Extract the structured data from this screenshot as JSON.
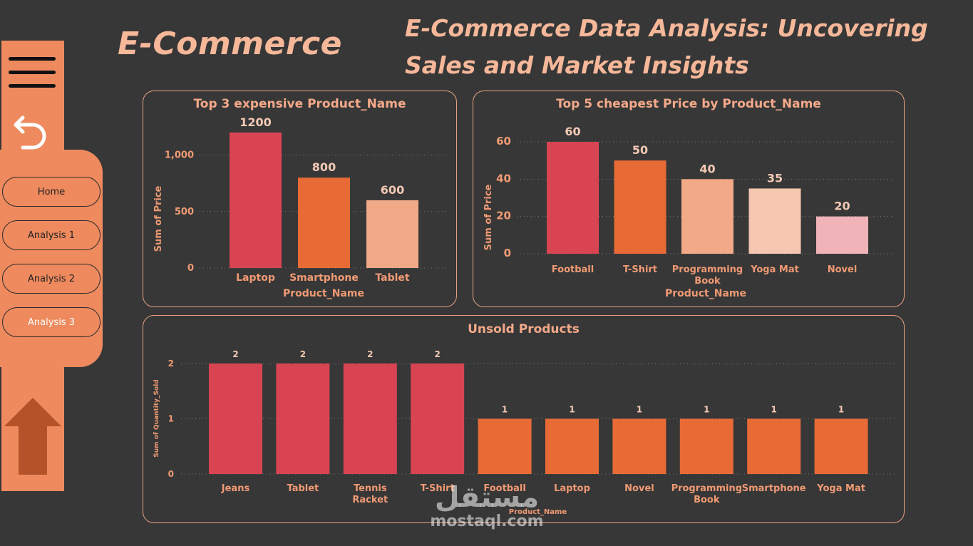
{
  "header": {
    "brand": "E-Commerce",
    "title": "E-Commerce Data Analysis: Uncovering Sales and Market Insights"
  },
  "sidebar": {
    "icons": [
      "menu-icon",
      "back-arrow-icon",
      "up-arrow-icon"
    ],
    "nav": [
      {
        "label": "Home"
      },
      {
        "label": "Analysis 1"
      },
      {
        "label": "Analysis 2"
      },
      {
        "label": "Analysis 3"
      }
    ],
    "active": "Analysis 3"
  },
  "colors": {
    "background": "#373737",
    "accent": "#ee8a5e",
    "title": "#f7b89a",
    "bar_red": "#d94452",
    "bar_orange": "#e86b36",
    "bar_peach": "#f2a988",
    "bar_light": "#f5c6b0",
    "bar_pink": "#efb3b8"
  },
  "watermark": {
    "arabic": "مستقل",
    "latin": "mostaql.com"
  },
  "chart_data": [
    {
      "id": "expensive",
      "type": "bar",
      "title": "Top 3 expensive Product_Name",
      "xlabel": "Product_Name",
      "ylabel": "Sum of Price",
      "categories": [
        "Laptop",
        "Smartphone",
        "Tablet"
      ],
      "values": [
        1200,
        800,
        600
      ],
      "data_labels": [
        "1200",
        "800",
        "600"
      ],
      "bar_colors": [
        "#d94452",
        "#e86b36",
        "#f2a988"
      ],
      "yticks": [
        0,
        500,
        1000
      ],
      "ytick_labels": [
        "0",
        "500",
        "1,000"
      ],
      "ylim": [
        0,
        1300
      ],
      "grid": true
    },
    {
      "id": "cheapest",
      "type": "bar",
      "title": "Top 5 cheapest Price by Product_Name",
      "xlabel": "Product_Name",
      "ylabel": "Sum of Price",
      "categories": [
        "Football",
        "T-Shirt",
        "Programming Book",
        "Yoga Mat",
        "Novel"
      ],
      "values": [
        60,
        50,
        40,
        35,
        20
      ],
      "data_labels": [
        "60",
        "50",
        "40",
        "35",
        "20"
      ],
      "bar_colors": [
        "#d94452",
        "#e86b36",
        "#f2a988",
        "#f5c6b0",
        "#efb3b8"
      ],
      "yticks": [
        0,
        20,
        40,
        60
      ],
      "ytick_labels": [
        "0",
        "20",
        "40",
        "60"
      ],
      "ylim": [
        0,
        60
      ],
      "grid": true
    },
    {
      "id": "unsold",
      "type": "bar",
      "title": "Unsold Products",
      "xlabel": "Product_Name",
      "ylabel": "Sum of Quantity_Sold",
      "categories": [
        "Jeans",
        "Tablet",
        "Tennis Racket",
        "T-Shirt",
        "Football",
        "Laptop",
        "Novel",
        "Programming Book",
        "Smartphone",
        "Yoga Mat"
      ],
      "values": [
        2,
        2,
        2,
        2,
        1,
        1,
        1,
        1,
        1,
        1
      ],
      "data_labels": [
        "2",
        "2",
        "2",
        "2",
        "1",
        "1",
        "1",
        "1",
        "1",
        "1"
      ],
      "bar_colors": [
        "#d94452",
        "#d94452",
        "#d94452",
        "#d94452",
        "#e86b36",
        "#e86b36",
        "#e86b36",
        "#e86b36",
        "#e86b36",
        "#e86b36"
      ],
      "yticks": [
        0,
        1,
        2
      ],
      "ytick_labels": [
        "0",
        "1",
        "2"
      ],
      "ylim": [
        0,
        2
      ],
      "grid": true
    }
  ]
}
